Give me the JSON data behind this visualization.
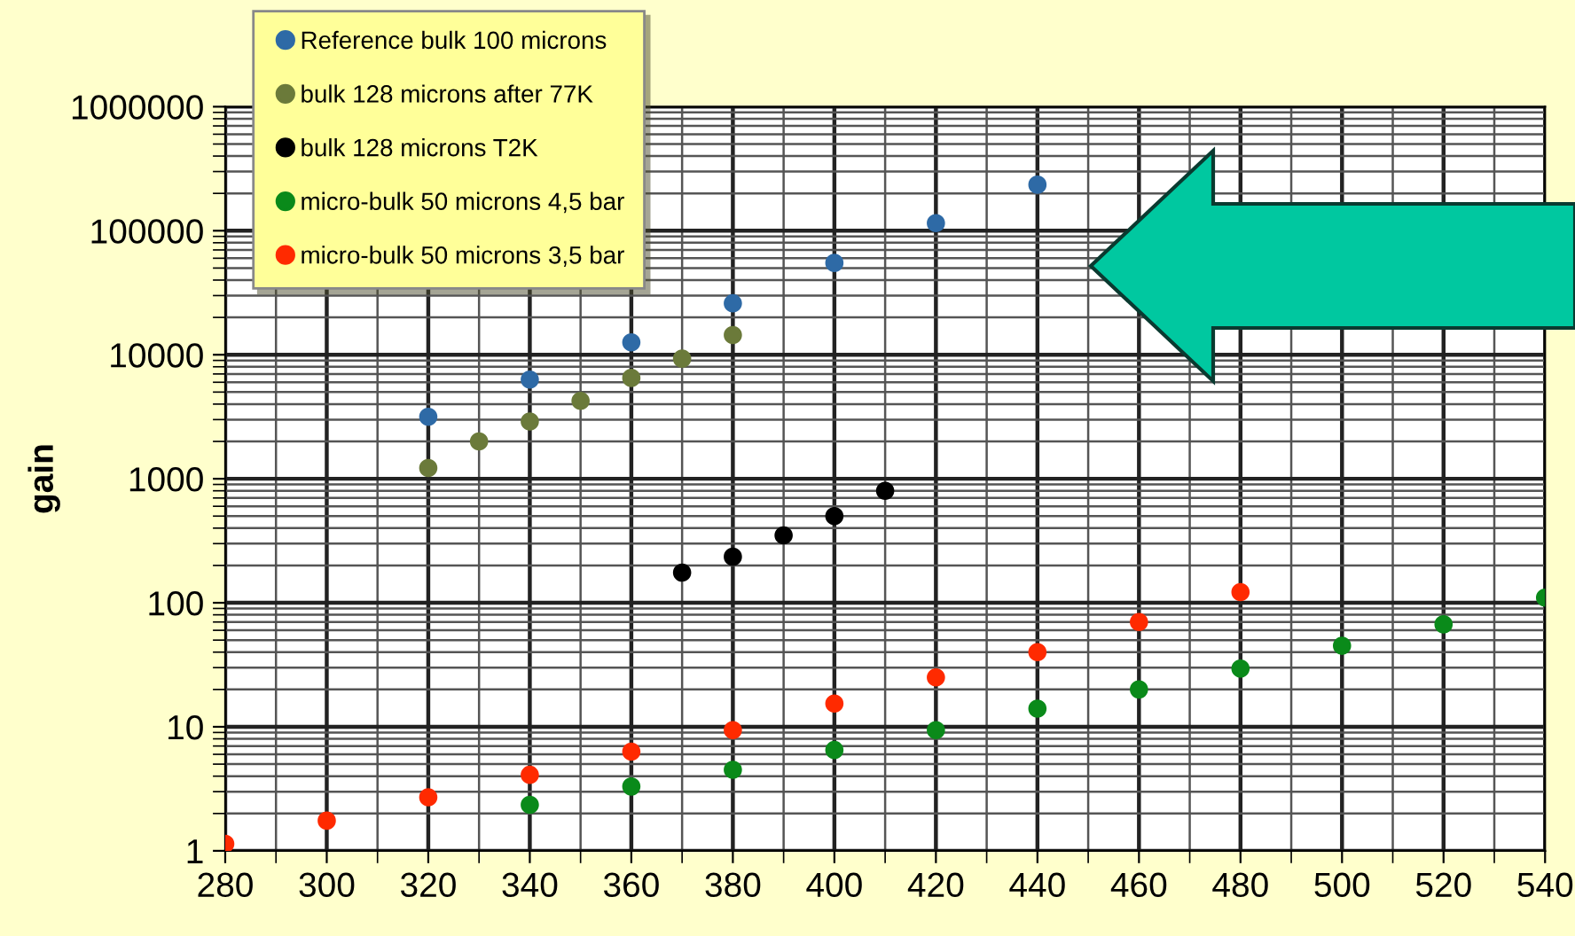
{
  "chart_data": {
    "type": "scatter",
    "ylabel": "gain",
    "log": "y",
    "xlim": [
      280,
      540
    ],
    "xticks": [
      280,
      300,
      320,
      340,
      360,
      380,
      400,
      420,
      440,
      460,
      480,
      500,
      520,
      540
    ],
    "ylim": [
      1,
      1000000
    ],
    "yticks": [
      1,
      10,
      100,
      1000,
      10000,
      100000,
      1000000
    ],
    "grid": true,
    "legend": "top left",
    "marker": "circle",
    "series": [
      {
        "name": "Reference bulk 100 microns",
        "color": "#2e6aa6",
        "x": [
          320,
          340,
          360,
          380,
          400,
          420,
          440
        ],
        "values": [
          3160,
          6300,
          12600,
          26000,
          55000,
          115000,
          235000
        ]
      },
      {
        "name": "bulk 128 microns after 77K",
        "color": "#6b7a3a",
        "x": [
          320,
          330,
          340,
          350,
          360,
          370,
          380
        ],
        "values": [
          1220,
          2000,
          2900,
          4250,
          6500,
          9300,
          14400
        ]
      },
      {
        "name": "bulk 128 microns T2K",
        "color": "#000000",
        "x": [
          370,
          380,
          390,
          400,
          410
        ],
        "values": [
          175,
          235,
          350,
          500,
          800
        ]
      },
      {
        "name": "micro-bulk 50 microns 4,5 bar",
        "color": "#0a8a1a",
        "x": [
          340,
          360,
          380,
          400,
          420,
          440,
          460,
          480,
          500,
          520,
          540
        ],
        "values": [
          2.35,
          3.3,
          4.5,
          6.5,
          9.4,
          14,
          20,
          29.5,
          45,
          67,
          110
        ]
      },
      {
        "name": "micro-bulk 50 microns 3,5 bar",
        "color": "#ff2a00",
        "x": [
          280,
          300,
          320,
          340,
          360,
          380,
          400,
          420,
          440,
          460,
          480
        ],
        "values": [
          1.14,
          1.75,
          2.7,
          4.1,
          6.3,
          9.4,
          15.4,
          25,
          40,
          70,
          122
        ]
      }
    ]
  }
}
